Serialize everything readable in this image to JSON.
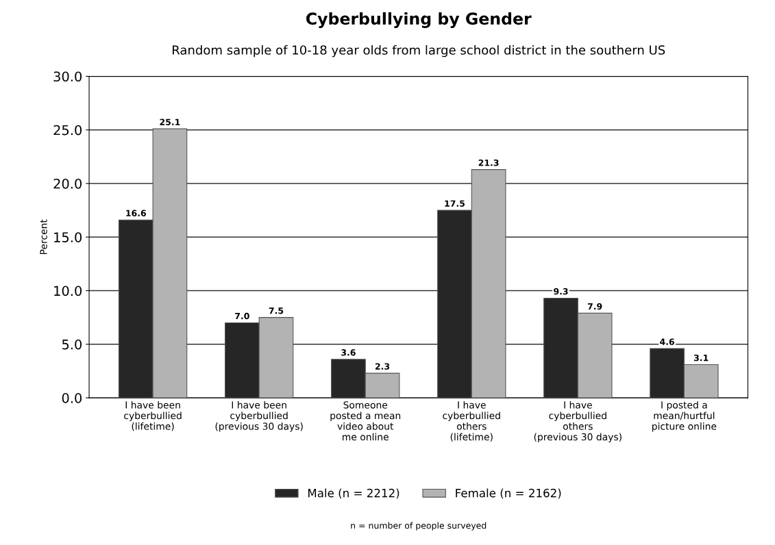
{
  "chart_data": {
    "type": "bar",
    "title": "Cyberbullying by Gender",
    "subtitle": "Random sample of 10-18 year olds from large school district in the southern US",
    "ylabel": "Percent",
    "categories": [
      "I have been\ncyberbullied\n(lifetime)",
      "I have been\ncyberbullied\n(previous 30 days)",
      "Someone\nposted a mean\nvideo about\nme online",
      "I have\ncyberbullied\nothers\n(lifetime)",
      "I have\ncyberbullied\nothers\n(previous 30 days)",
      "I posted a\nmean/hurtful\npicture online"
    ],
    "series": [
      {
        "name": "Male (n = 2212)",
        "color": "#262626",
        "values": [
          16.6,
          7.0,
          3.6,
          17.5,
          9.3,
          4.6
        ],
        "value_labels": [
          "16.6",
          "7.0",
          "3.6",
          "17.5",
          "9.3",
          "4.6"
        ]
      },
      {
        "name": "Female (n = 2162)",
        "color": "#b3b3b3",
        "values": [
          25.1,
          7.5,
          2.3,
          21.3,
          7.9,
          3.1
        ],
        "value_labels": [
          "25.1",
          "7.5",
          "2.3",
          "21.3",
          "7.9",
          "3.1"
        ]
      }
    ],
    "ylim": [
      0,
      30
    ],
    "yticks": [
      {
        "value": 0,
        "label": "0.0"
      },
      {
        "value": 5,
        "label": "5.0"
      },
      {
        "value": 10,
        "label": "10.0"
      },
      {
        "value": 15,
        "label": "15.0"
      },
      {
        "value": 20,
        "label": "20.0"
      },
      {
        "value": 25,
        "label": "25.0"
      },
      {
        "value": 30,
        "label": "30.0"
      }
    ],
    "grid": "y",
    "legend": "bottom",
    "annotations": [
      "n = number of people surveyed"
    ]
  }
}
